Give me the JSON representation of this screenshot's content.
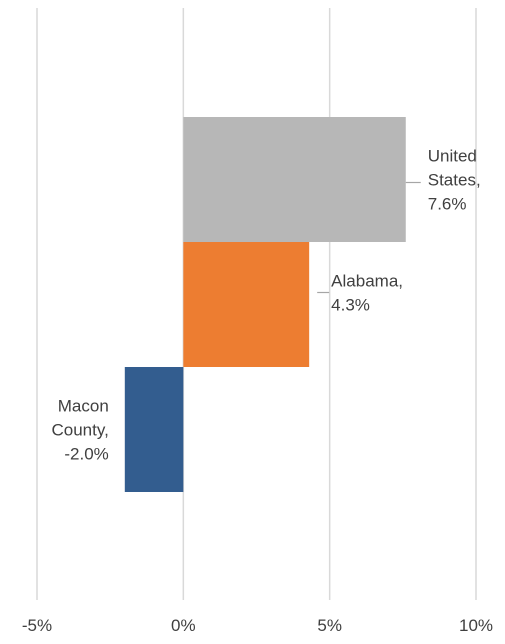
{
  "chart_data": {
    "type": "bar",
    "orientation": "horizontal",
    "title": "",
    "xlabel": "",
    "ylabel": "",
    "xlim": [
      -5,
      10
    ],
    "x_ticks": [
      -5,
      0,
      5,
      10
    ],
    "x_tick_labels": [
      "-5%",
      "0%",
      "5%",
      "10%"
    ],
    "grid": "vertical",
    "legend": "none",
    "series": [
      {
        "categories": [
          "United States",
          "Alabama",
          "Macon County"
        ],
        "values": [
          7.6,
          4.3,
          -2.0
        ],
        "colors": [
          "#b7b7b7",
          "#ed7d31",
          "#335d8f"
        ]
      }
    ],
    "data_labels": [
      [
        "United",
        "States,",
        "7.6%"
      ],
      [
        "Alabama,",
        "4.3%"
      ],
      [
        "Macon",
        "County,",
        "-2.0%"
      ]
    ]
  }
}
